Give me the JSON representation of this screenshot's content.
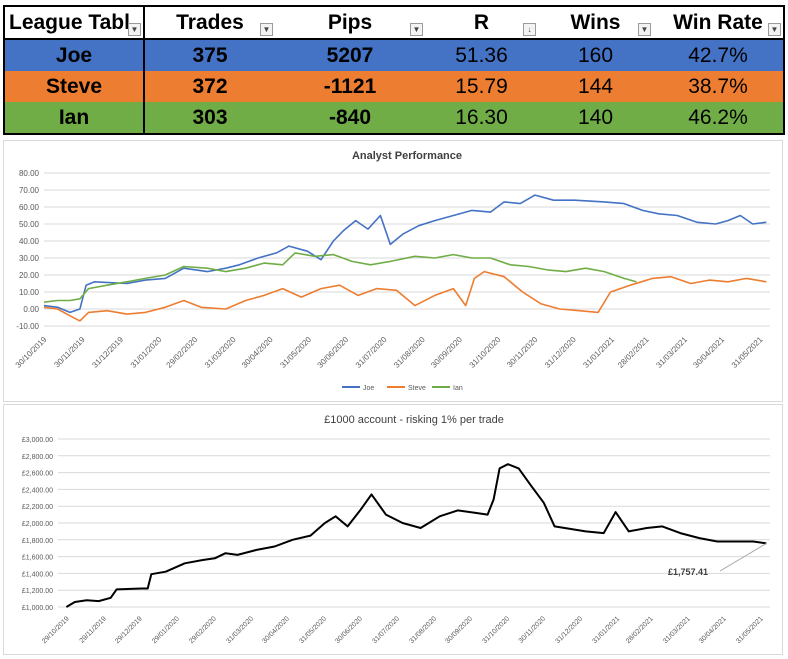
{
  "table": {
    "headers": [
      "League Tabl",
      "Trades",
      "Pips",
      "R",
      "Wins",
      "Win Rate"
    ],
    "rows": [
      {
        "name": "Joe",
        "trades": "375",
        "pips": "5207",
        "r": "51.36",
        "wins": "160",
        "win_rate": "42.7%",
        "color": "#4472c4"
      },
      {
        "name": "Steve",
        "trades": "372",
        "pips": "-1121",
        "r": "15.79",
        "wins": "144",
        "win_rate": "38.7%",
        "color": "#ed7d31"
      },
      {
        "name": "Ian",
        "trades": "303",
        "pips": "-840",
        "r": "16.30",
        "wins": "140",
        "win_rate": "46.2%",
        "color": "#70ad47"
      }
    ]
  },
  "chart_data": [
    {
      "type": "line",
      "title": "Analyst Performance",
      "ylim": [
        -10,
        80
      ],
      "yticks": [
        "-10.00",
        "0.00",
        "10.00",
        "20.00",
        "30.00",
        "40.00",
        "50.00",
        "60.00",
        "70.00",
        "80.00"
      ],
      "x_tick_labels": [
        "30/10/2019",
        "30/11/2019",
        "31/12/2019",
        "31/01/2020",
        "29/02/2020",
        "31/03/2020",
        "30/04/2020",
        "31/05/2020",
        "30/06/2020",
        "31/07/2020",
        "31/08/2020",
        "30/09/2020",
        "31/10/2020",
        "30/11/2020",
        "31/12/2020",
        "31/01/2021",
        "28/02/2021",
        "31/03/2021",
        "30/04/2021",
        "31/05/2021"
      ],
      "x_range": [
        "2019-10-30",
        "2021-06-08"
      ],
      "grid": true,
      "legend_position": "bottom",
      "series": [
        {
          "name": "Joe",
          "color": "#4472c4",
          "points": [
            [
              "2019-10-30",
              2
            ],
            [
              "2019-11-10",
              1
            ],
            [
              "2019-11-20",
              -2
            ],
            [
              "2019-11-28",
              0
            ],
            [
              "2019-12-03",
              14
            ],
            [
              "2019-12-10",
              16
            ],
            [
              "2020-01-05",
              15
            ],
            [
              "2020-01-20",
              17
            ],
            [
              "2020-02-05",
              18
            ],
            [
              "2020-02-20",
              24
            ],
            [
              "2020-03-10",
              22
            ],
            [
              "2020-03-25",
              24
            ],
            [
              "2020-04-05",
              26
            ],
            [
              "2020-04-20",
              30
            ],
            [
              "2020-05-05",
              33
            ],
            [
              "2020-05-15",
              37
            ],
            [
              "2020-05-30",
              34
            ],
            [
              "2020-06-10",
              29
            ],
            [
              "2020-06-20",
              40
            ],
            [
              "2020-06-28",
              46
            ],
            [
              "2020-07-08",
              52
            ],
            [
              "2020-07-18",
              47
            ],
            [
              "2020-07-28",
              55
            ],
            [
              "2020-08-05",
              38
            ],
            [
              "2020-08-15",
              44
            ],
            [
              "2020-08-28",
              49
            ],
            [
              "2020-09-10",
              52
            ],
            [
              "2020-09-25",
              55
            ],
            [
              "2020-10-10",
              58
            ],
            [
              "2020-10-25",
              57
            ],
            [
              "2020-11-05",
              63
            ],
            [
              "2020-11-18",
              62
            ],
            [
              "2020-11-30",
              67
            ],
            [
              "2020-12-15",
              64
            ],
            [
              "2021-01-01",
              64
            ],
            [
              "2021-01-25",
              63
            ],
            [
              "2021-02-10",
              62
            ],
            [
              "2021-02-25",
              58
            ],
            [
              "2021-03-10",
              56
            ],
            [
              "2021-03-25",
              55
            ],
            [
              "2021-04-10",
              51
            ],
            [
              "2021-04-25",
              50
            ],
            [
              "2021-05-05",
              52
            ],
            [
              "2021-05-15",
              55
            ],
            [
              "2021-05-25",
              50
            ],
            [
              "2021-06-05",
              51
            ]
          ]
        },
        {
          "name": "Steve",
          "color": "#ed7d31",
          "points": [
            [
              "2019-10-30",
              1
            ],
            [
              "2019-11-10",
              0
            ],
            [
              "2019-11-20",
              -4
            ],
            [
              "2019-11-28",
              -7
            ],
            [
              "2019-12-05",
              -2
            ],
            [
              "2019-12-20",
              -1
            ],
            [
              "2020-01-05",
              -3
            ],
            [
              "2020-01-20",
              -2
            ],
            [
              "2020-02-05",
              1
            ],
            [
              "2020-02-20",
              5
            ],
            [
              "2020-03-05",
              1
            ],
            [
              "2020-03-25",
              0
            ],
            [
              "2020-04-10",
              5
            ],
            [
              "2020-04-25",
              8
            ],
            [
              "2020-05-10",
              12
            ],
            [
              "2020-05-25",
              7
            ],
            [
              "2020-06-10",
              12
            ],
            [
              "2020-06-25",
              14
            ],
            [
              "2020-07-10",
              8
            ],
            [
              "2020-07-25",
              12
            ],
            [
              "2020-08-10",
              11
            ],
            [
              "2020-08-25",
              2
            ],
            [
              "2020-09-10",
              8
            ],
            [
              "2020-09-25",
              12
            ],
            [
              "2020-10-05",
              2
            ],
            [
              "2020-10-12",
              18
            ],
            [
              "2020-10-20",
              22
            ],
            [
              "2020-11-05",
              19
            ],
            [
              "2020-11-20",
              10
            ],
            [
              "2020-12-05",
              3
            ],
            [
              "2020-12-20",
              0
            ],
            [
              "2021-01-05",
              -1
            ],
            [
              "2021-01-20",
              -2
            ],
            [
              "2021-01-30",
              10
            ],
            [
              "2021-02-15",
              14
            ],
            [
              "2021-03-05",
              18
            ],
            [
              "2021-03-20",
              19
            ],
            [
              "2021-04-05",
              15
            ],
            [
              "2021-04-20",
              17
            ],
            [
              "2021-05-05",
              16
            ],
            [
              "2021-05-20",
              18
            ],
            [
              "2021-06-05",
              16
            ]
          ]
        },
        {
          "name": "Ian",
          "color": "#70ad47",
          "points": [
            [
              "2019-10-30",
              4
            ],
            [
              "2019-11-10",
              5
            ],
            [
              "2019-11-20",
              5
            ],
            [
              "2019-11-28",
              6
            ],
            [
              "2019-12-05",
              12
            ],
            [
              "2019-12-20",
              14
            ],
            [
              "2020-01-05",
              16
            ],
            [
              "2020-01-20",
              18
            ],
            [
              "2020-02-05",
              20
            ],
            [
              "2020-02-20",
              25
            ],
            [
              "2020-03-10",
              24
            ],
            [
              "2020-03-25",
              22
            ],
            [
              "2020-04-10",
              24
            ],
            [
              "2020-04-25",
              27
            ],
            [
              "2020-05-10",
              26
            ],
            [
              "2020-05-20",
              33
            ],
            [
              "2020-06-05",
              31
            ],
            [
              "2020-06-20",
              32
            ],
            [
              "2020-07-05",
              28
            ],
            [
              "2020-07-20",
              26
            ],
            [
              "2020-08-05",
              28
            ],
            [
              "2020-08-25",
              31
            ],
            [
              "2020-09-10",
              30
            ],
            [
              "2020-09-25",
              32
            ],
            [
              "2020-10-10",
              30
            ],
            [
              "2020-10-25",
              30
            ],
            [
              "2020-11-10",
              26
            ],
            [
              "2020-11-25",
              25
            ],
            [
              "2020-12-10",
              23
            ],
            [
              "2020-12-25",
              22
            ],
            [
              "2021-01-10",
              24
            ],
            [
              "2021-01-25",
              22
            ],
            [
              "2021-02-10",
              18
            ],
            [
              "2021-02-20",
              16
            ]
          ]
        }
      ]
    },
    {
      "type": "line",
      "title": "£1000 account - risking 1% per trade",
      "ylim": [
        1000,
        3000
      ],
      "yticks": [
        "£1,000.00",
        "£1,200.00",
        "£1,400.00",
        "£1,600.00",
        "£1,800.00",
        "£2,000.00",
        "£2,200.00",
        "£2,400.00",
        "£2,600.00",
        "£2,800.00",
        "£3,000.00"
      ],
      "x_tick_labels": [
        "29/10/2019",
        "29/11/2019",
        "29/12/2019",
        "29/01/2020",
        "29/02/2020",
        "31/03/2020",
        "30/04/2020",
        "31/05/2020",
        "30/06/2020",
        "31/07/2020",
        "31/08/2020",
        "30/09/2020",
        "31/10/2020",
        "30/11/2020",
        "31/12/2020",
        "31/01/2021",
        "28/02/2021",
        "31/03/2021",
        "30/04/2021",
        "31/05/2021"
      ],
      "x_range": [
        "2019-10-22",
        "2021-06-08"
      ],
      "grid": true,
      "annotation": {
        "label": "£1,757.41",
        "date": "2021-06-05",
        "value": 1757.41
      },
      "series": [
        {
          "name": "",
          "color": "#000000",
          "points": [
            [
              "2019-10-29",
              1000
            ],
            [
              "2019-11-05",
              1060
            ],
            [
              "2019-11-15",
              1080
            ],
            [
              "2019-11-25",
              1070
            ],
            [
              "2019-12-05",
              1110
            ],
            [
              "2019-12-10",
              1210
            ],
            [
              "2019-12-31",
              1220
            ],
            [
              "2020-01-05",
              1220
            ],
            [
              "2020-01-08",
              1390
            ],
            [
              "2020-01-20",
              1420
            ],
            [
              "2020-02-05",
              1520
            ],
            [
              "2020-02-20",
              1560
            ],
            [
              "2020-03-01",
              1580
            ],
            [
              "2020-03-10",
              1640
            ],
            [
              "2020-03-20",
              1620
            ],
            [
              "2020-04-05",
              1680
            ],
            [
              "2020-04-20",
              1720
            ],
            [
              "2020-05-05",
              1800
            ],
            [
              "2020-05-20",
              1850
            ],
            [
              "2020-06-01",
              2000
            ],
            [
              "2020-06-10",
              2080
            ],
            [
              "2020-06-20",
              1960
            ],
            [
              "2020-07-01",
              2160
            ],
            [
              "2020-07-10",
              2340
            ],
            [
              "2020-07-22",
              2100
            ],
            [
              "2020-08-05",
              2000
            ],
            [
              "2020-08-20",
              1940
            ],
            [
              "2020-09-05",
              2080
            ],
            [
              "2020-09-20",
              2150
            ],
            [
              "2020-10-05",
              2120
            ],
            [
              "2020-10-15",
              2100
            ],
            [
              "2020-10-20",
              2280
            ],
            [
              "2020-10-25",
              2650
            ],
            [
              "2020-11-01",
              2700
            ],
            [
              "2020-11-10",
              2650
            ],
            [
              "2020-11-20",
              2450
            ],
            [
              "2020-12-01",
              2240
            ],
            [
              "2020-12-10",
              1960
            ],
            [
              "2021-01-05",
              1900
            ],
            [
              "2021-01-20",
              1880
            ],
            [
              "2021-01-30",
              2130
            ],
            [
              "2021-02-10",
              1900
            ],
            [
              "2021-02-25",
              1940
            ],
            [
              "2021-03-10",
              1960
            ],
            [
              "2021-03-25",
              1880
            ],
            [
              "2021-04-10",
              1820
            ],
            [
              "2021-04-25",
              1780
            ],
            [
              "2021-05-10",
              1780
            ],
            [
              "2021-05-25",
              1780
            ],
            [
              "2021-06-05",
              1757.41
            ]
          ]
        }
      ]
    }
  ]
}
